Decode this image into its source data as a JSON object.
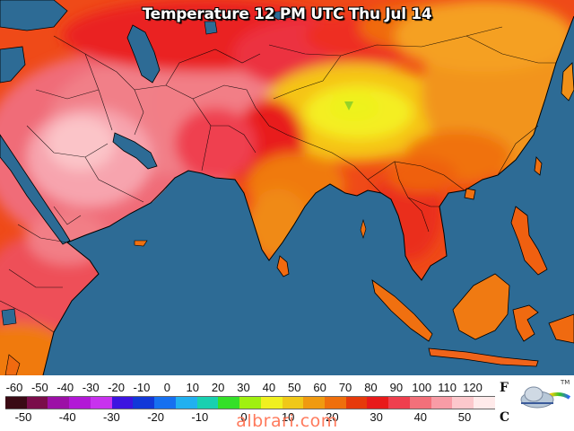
{
  "map": {
    "title": "Temperature 12 PM UTC Thu Jul 14",
    "ocean_color": "#2d6b95"
  },
  "legend": {
    "fahrenheit_label": "F",
    "celsius_label": "C",
    "fahrenheit_ticks": [
      "-60",
      "-50",
      "-40",
      "-30",
      "-20",
      "-10",
      "0",
      "10",
      "20",
      "30",
      "40",
      "50",
      "60",
      "70",
      "80",
      "90",
      "100",
      "110",
      "120"
    ],
    "celsius_ticks": [
      "-50",
      "-40",
      "-30",
      "-20",
      "-10",
      "0",
      "10",
      "20",
      "30",
      "40",
      "50"
    ],
    "colors": [
      "#3a0a14",
      "#7a0d4a",
      "#9c10a6",
      "#b218d6",
      "#c832ee",
      "#3c14e0",
      "#1238d8",
      "#1670f0",
      "#21b0f0",
      "#19d0b0",
      "#34e028",
      "#a0f010",
      "#f0f020",
      "#f0c818",
      "#f09a10",
      "#ef6f0c",
      "#e63a0b",
      "#e81a1a",
      "#ef3f4e",
      "#f3707a",
      "#f89ca6",
      "#fcc8cc",
      "#ffeaea"
    ]
  },
  "watermark": "albrari.com",
  "logo": {
    "icon": "weather-cloud-sun-logo-icon",
    "mark": "TM"
  }
}
